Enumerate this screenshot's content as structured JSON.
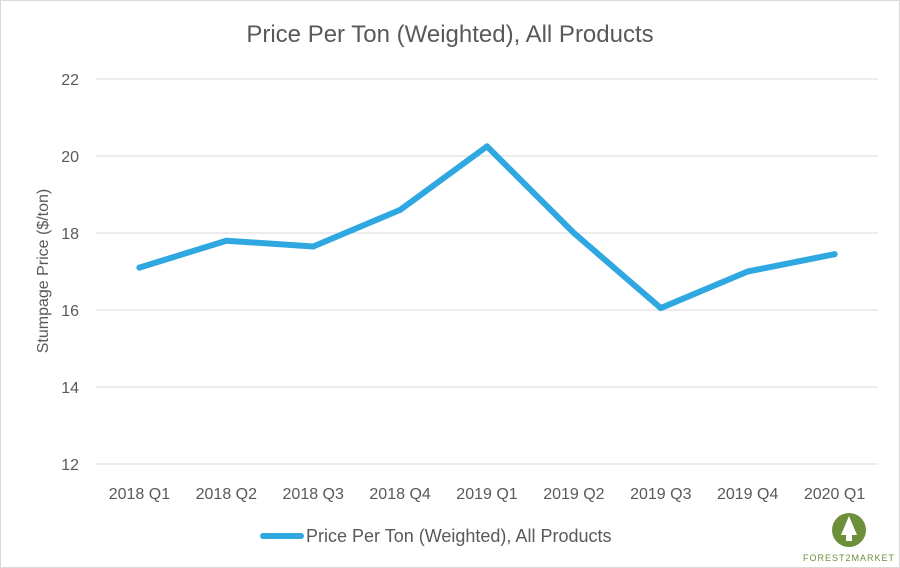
{
  "chart_data": {
    "type": "line",
    "title": "Price Per Ton (Weighted), All Products",
    "xlabel": "",
    "ylabel": "Stumpage Price ($/ton)",
    "categories": [
      "2018 Q1",
      "2018 Q2",
      "2018 Q3",
      "2018 Q4",
      "2019 Q1",
      "2019 Q2",
      "2019 Q3",
      "2019 Q4",
      "2020 Q1"
    ],
    "ylim": [
      12,
      22
    ],
    "yticks": [
      12,
      14,
      16,
      18,
      20,
      22
    ],
    "grid": true,
    "legend_position": "bottom",
    "series": [
      {
        "name": "Price Per Ton (Weighted), All Products",
        "color": "#2fa7e0",
        "values": [
          17.1,
          17.8,
          17.65,
          18.6,
          20.25,
          18.0,
          16.05,
          17.0,
          17.45
        ]
      }
    ]
  },
  "logo": {
    "text": "FOREST2MARKET",
    "icon": "tree-icon",
    "color": "#6d8f3a"
  }
}
